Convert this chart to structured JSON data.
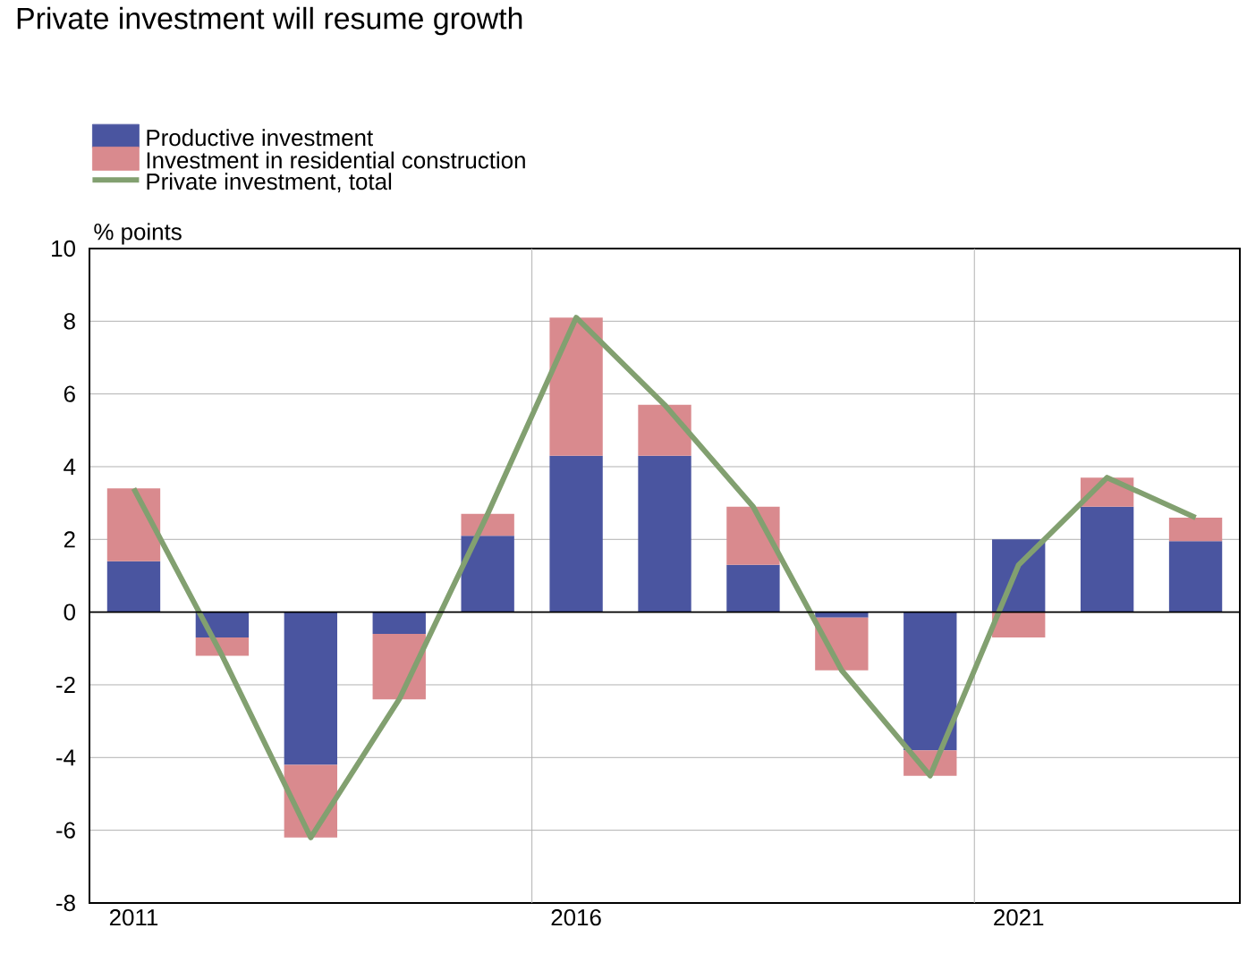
{
  "chart_data": {
    "type": "bar",
    "title": "Private investment will resume growth",
    "ylabel": "% points",
    "stacked": true,
    "categories": [
      "2011",
      null,
      null,
      null,
      null,
      "2016",
      null,
      null,
      null,
      null,
      "2021",
      null,
      null
    ],
    "series": [
      {
        "name": "Productive investment",
        "color": "#4a55a0",
        "values": [
          1.4,
          -0.7,
          -4.2,
          -0.6,
          2.1,
          4.3,
          4.3,
          1.3,
          -0.15,
          -3.8,
          2.0,
          2.9,
          1.95
        ]
      },
      {
        "name": "Investment in residential construction",
        "color": "#d98a8e",
        "values": [
          2.0,
          -0.5,
          -2.0,
          -1.8,
          0.6,
          3.8,
          1.4,
          1.6,
          -1.45,
          -0.7,
          -0.7,
          0.8,
          0.65
        ]
      },
      {
        "name": "Private investment, total",
        "type": "line",
        "color": "#82a070",
        "values": [
          3.4,
          -1.2,
          -6.2,
          -2.4,
          2.7,
          8.1,
          5.7,
          2.9,
          -1.6,
          -4.5,
          1.3,
          3.7,
          2.6
        ]
      }
    ],
    "ylim": [
      -8,
      10
    ],
    "yticks": [
      -8,
      -6,
      -4,
      -2,
      0,
      2,
      4,
      6,
      8,
      10
    ],
    "grid": true,
    "legend": "top left"
  }
}
